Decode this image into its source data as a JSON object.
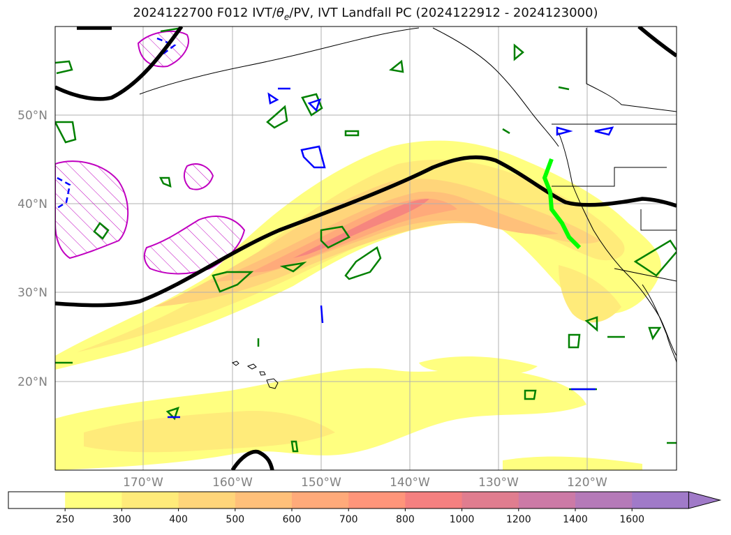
{
  "title": "2024122700 F012 IVT/θe/PV, IVT Landfall PC (2024122912 - 2024123000)",
  "title_parts": {
    "prefix": "2024122700 F012 IVT/",
    "theta": "θ",
    "theta_sub": "e",
    "suffix": "/PV, IVT Landfall PC (2024122912 - 2024123000)"
  },
  "lat_labels": [
    "50°N",
    "40°N",
    "30°N",
    "20°N"
  ],
  "lon_labels": [
    "170°W",
    "160°W",
    "150°W",
    "140°W",
    "130°W",
    "120°W"
  ],
  "colorbar": {
    "ticks": [
      "250",
      "300",
      "400",
      "500",
      "600",
      "700",
      "800",
      "1000",
      "1200",
      "1400",
      "1600"
    ],
    "colors": [
      "#ffffff",
      "#ffff80",
      "#ffeb7a",
      "#ffd57a",
      "#ffc07a",
      "#ffaa7a",
      "#ff957a",
      "#f58080",
      "#e07d8f",
      "#cc7aa6",
      "#b57ab8",
      "#a07ac8"
    ]
  },
  "legend_colors": {
    "ivt_shading": "#ffeb7a",
    "theta_e_contour": "#000000",
    "pv_positive": "#008000",
    "pv_negative": "#0000ff",
    "magenta_contour": "#c000c0",
    "landfall_line": "#00ff00"
  }
}
